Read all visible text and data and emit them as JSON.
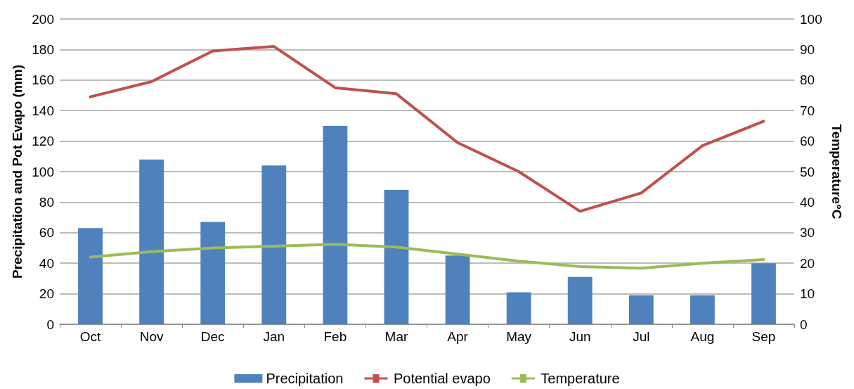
{
  "chart_data": {
    "type": "bar",
    "ylabel": "Precipitation and Pot Evapo (mm)",
    "y2label": "Temperature°C",
    "categories": [
      "Oct",
      "Nov",
      "Dec",
      "Jan",
      "Feb",
      "Mar",
      "Apr",
      "May",
      "Jun",
      "Jul",
      "Aug",
      "Sep"
    ],
    "series": [
      {
        "name": "Precipitation",
        "color": "#4f81bd",
        "values": [
          63,
          108,
          67,
          104,
          130,
          88,
          45,
          21,
          31,
          19,
          19,
          40
        ]
      },
      {
        "name": "Potential evapo",
        "type": "line",
        "color": "#c0504d",
        "values": [
          149,
          159,
          179,
          182,
          155,
          151,
          119,
          100,
          74,
          86,
          117,
          133
        ]
      },
      {
        "name": "Temperature",
        "type": "line",
        "axis": "y2",
        "color": "#9bbb59",
        "values": [
          22,
          23.8,
          25,
          25.6,
          26.2,
          25.3,
          23,
          20.7,
          18.9,
          18.4,
          20,
          21.2
        ]
      }
    ],
    "ylim": [
      0,
      200
    ],
    "yticks": [
      0,
      20,
      40,
      60,
      80,
      100,
      120,
      140,
      160,
      180,
      200
    ],
    "y2lim": [
      0,
      100
    ],
    "y2ticks": [
      0,
      10,
      20,
      30,
      40,
      50,
      60,
      70,
      80,
      90,
      100
    ],
    "grid": "y",
    "legend": "bottom",
    "marker": "none"
  }
}
